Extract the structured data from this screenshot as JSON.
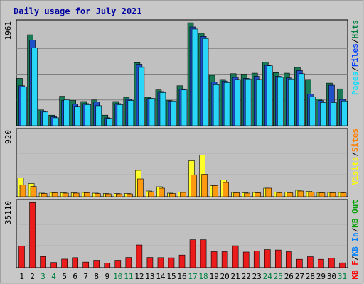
{
  "chart_data": {
    "type": "bar",
    "title": "Daily usage for July 2021",
    "categories": [
      "1",
      "2",
      "3",
      "4",
      "5",
      "6",
      "7",
      "8",
      "9",
      "10",
      "11",
      "12",
      "13",
      "14",
      "15",
      "16",
      "17",
      "18",
      "19",
      "20",
      "21",
      "22",
      "23",
      "24",
      "25",
      "26",
      "27",
      "28",
      "29",
      "30",
      "31"
    ],
    "weekend_days": [
      "3",
      "4",
      "10",
      "11",
      "17",
      "18",
      "24",
      "25",
      "31"
    ],
    "panels": [
      {
        "id": "hits",
        "ylim": [
          0,
          1961
        ],
        "max_label": "1961",
        "legend": [
          {
            "text": "Pages",
            "color": "#00e0ff"
          },
          {
            "text": "Files",
            "color": "#0040ff"
          },
          {
            "text": "Hits",
            "color": "#008040"
          }
        ],
        "separator_color": "#000000",
        "series": [
          {
            "name": "Hits",
            "color": "#1a7a55",
            "values": [
              900,
              1730,
              300,
              200,
              560,
              480,
              460,
              490,
              200,
              460,
              540,
              1200,
              540,
              680,
              480,
              760,
              1960,
              1760,
              960,
              880,
              990,
              980,
              1000,
              1210,
              1010,
              1000,
              1110,
              880,
              510,
              810,
              700
            ]
          },
          {
            "name": "Files",
            "color": "#1f50c8",
            "values": [
              760,
              1630,
              280,
              170,
              480,
              410,
              420,
              450,
              150,
              420,
              500,
              1170,
              520,
              650,
              470,
              700,
              1880,
              1700,
              830,
              850,
              920,
              900,
              940,
              1150,
              940,
              910,
              1050,
              600,
              480,
              770,
              500
            ]
          },
          {
            "name": "Pages",
            "color": "#29d6f8",
            "values": [
              740,
              1480,
              260,
              150,
              490,
              370,
              400,
              380,
              140,
              400,
              480,
              1110,
              520,
              630,
              470,
              680,
              1840,
              1660,
              780,
              820,
              880,
              890,
              880,
              1140,
              920,
              890,
              990,
              550,
              440,
              440,
              470
            ]
          }
        ]
      },
      {
        "id": "visits",
        "ylim": [
          0,
          920
        ],
        "max_label": "920",
        "legend": [
          {
            "text": "Visits",
            "color": "#ffff00"
          },
          {
            "text": "Sites",
            "color": "#ff8000"
          }
        ],
        "separator_color": "#000000",
        "series": [
          {
            "name": "Visits",
            "color": "#ffff2a",
            "values": [
              265,
              185,
              50,
              60,
              55,
              55,
              60,
              50,
              45,
              45,
              45,
              370,
              80,
              140,
              50,
              65,
              505,
              585,
              155,
              235,
              60,
              55,
              60,
              120,
              65,
              65,
              90,
              75,
              60,
              60,
              60
            ]
          },
          {
            "name": "Sites",
            "color": "#ff9910",
            "values": [
              165,
              145,
              45,
              55,
              50,
              50,
              55,
              45,
              40,
              40,
              40,
              250,
              70,
              120,
              45,
              60,
              305,
              315,
              155,
              200,
              55,
              50,
              55,
              120,
              55,
              55,
              80,
              65,
              55,
              55,
              55
            ]
          }
        ]
      },
      {
        "id": "kbytes",
        "ylim": [
          0,
          35110
        ],
        "max_label": "35110",
        "legend": [
          {
            "text": "KB F",
            "color": "#ff0000"
          },
          {
            "text": "KB In",
            "color": "#0080ff"
          },
          {
            "text": "KB Out",
            "color": "#00a000"
          }
        ],
        "separator_color": "#000000",
        "series": [
          {
            "name": "KB F",
            "color": "#ec1c1c",
            "values": [
              11600,
              35000,
              6000,
              2800,
              4600,
              5400,
              3000,
              4000,
              2400,
              4000,
              5500,
              12200,
              5500,
              5400,
              5300,
              6800,
              15000,
              15000,
              8600,
              8600,
              11800,
              8400,
              9000,
              9700,
              9500,
              8600,
              4500,
              5900,
              4500,
              5100,
              2600
            ]
          }
        ]
      }
    ]
  }
}
